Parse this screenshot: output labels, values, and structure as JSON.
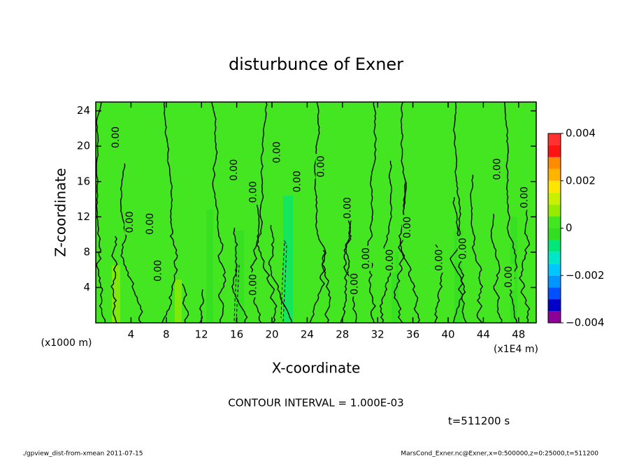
{
  "chart_data": {
    "type": "contour",
    "title": "disturbunce of Exner",
    "x_label": "X-coordinate",
    "y_label": "Z-coordinate",
    "x_unit": "(x1E4 m)",
    "y_unit": "(x1000 m)",
    "xlim": [
      0,
      50
    ],
    "xticks": [
      4,
      8,
      12,
      16,
      20,
      24,
      28,
      32,
      36,
      40,
      44,
      48
    ],
    "ylim": [
      0,
      25
    ],
    "yticks": [
      4,
      8,
      12,
      16,
      20,
      24
    ],
    "contour_interval": "CONTOUR INTERVAL = 1.000E-03",
    "time": "t=511200 s",
    "contour_labels": [
      {
        "label": "0.00",
        "x": 2.3,
        "y": 21.0
      },
      {
        "label": "0.00",
        "x": 3.9,
        "y": 11.4
      },
      {
        "label": "0.00",
        "x": 6.2,
        "y": 11.2
      },
      {
        "label": "0.00",
        "x": 7.1,
        "y": 5.9
      },
      {
        "label": "0.00",
        "x": 15.7,
        "y": 17.3
      },
      {
        "label": "0.00",
        "x": 17.9,
        "y": 14.8
      },
      {
        "label": "0.00",
        "x": 17.9,
        "y": 4.3
      },
      {
        "label": "0.00",
        "x": 20.6,
        "y": 19.3
      },
      {
        "label": "0.00",
        "x": 22.9,
        "y": 16.0
      },
      {
        "label": "0.00",
        "x": 25.6,
        "y": 17.7
      },
      {
        "label": "0.00",
        "x": 28.6,
        "y": 13.0
      },
      {
        "label": "0.00",
        "x": 29.4,
        "y": 4.4
      },
      {
        "label": "0.00",
        "x": 30.7,
        "y": 7.3
      },
      {
        "label": "0.00",
        "x": 33.4,
        "y": 7.1
      },
      {
        "label": "0.00",
        "x": 35.4,
        "y": 10.8
      },
      {
        "label": "0.00",
        "x": 39.0,
        "y": 7.1
      },
      {
        "label": "0.00",
        "x": 41.7,
        "y": 8.4
      },
      {
        "label": "0.00",
        "x": 45.6,
        "y": 17.4
      },
      {
        "label": "0.00",
        "x": 46.9,
        "y": 5.2
      },
      {
        "label": "0.00",
        "x": 48.7,
        "y": 14.2
      }
    ],
    "colorbar": {
      "levels": [
        -0.004,
        -0.0035,
        -0.003,
        -0.0025,
        -0.002,
        -0.0015,
        -0.001,
        -0.0005,
        0,
        0.0005,
        0.001,
        0.0015,
        0.002,
        0.0025,
        0.003,
        0.0035,
        0.004
      ],
      "colors": [
        "#8c0096",
        "#0000c8",
        "#0050ff",
        "#0096ff",
        "#00c8ff",
        "#00e6c8",
        "#00e678",
        "#33dd22",
        "#44e622",
        "#96eb00",
        "#c8f000",
        "#ffe600",
        "#ffb400",
        "#ff8c00",
        "#ff1414",
        "#ff3232",
        "#ffaaaa"
      ],
      "ticks": [
        {
          "value": -0.004,
          "label": "−0.004"
        },
        {
          "value": -0.002,
          "label": "−0.002"
        },
        0,
        0.002,
        0.004
      ]
    },
    "footer_left": "./gpview_dist-from-xmean  2011-07-15",
    "footer_right": "MarsCond_Exner.nc@Exner,x=0:500000,z=0:25000,t=511200"
  }
}
